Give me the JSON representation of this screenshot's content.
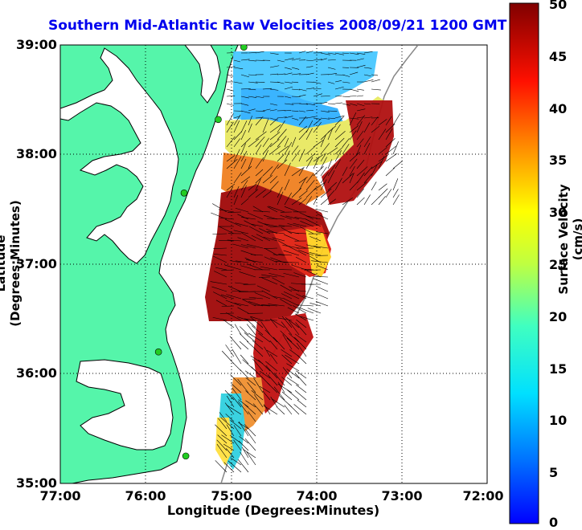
{
  "title": "Southern Mid-Atlantic Raw Velocities 2008/09/21 1200 GMT",
  "x_axis": {
    "label": "Longitude (Degrees:Minutes)",
    "ticks": [
      "77:00",
      "76:00",
      "75:00",
      "74:00",
      "73:00",
      "72:00"
    ]
  },
  "y_axis": {
    "label": "Latitude (Degrees:Minutes)",
    "ticks": [
      "39:00",
      "38:00",
      "37:00",
      "36:00",
      "35:00"
    ]
  },
  "colorbar": {
    "label": "Surface Velocity (cm/s)",
    "ticks": [
      "50",
      "45",
      "40",
      "35",
      "30",
      "25",
      "20",
      "15",
      "10",
      "5",
      "0"
    ],
    "min": 0,
    "max": 50,
    "colormap": "jet"
  },
  "colors": {
    "land": "#55f5aa",
    "title": "#0000ee",
    "grid": "#000000"
  },
  "map_extent": {
    "lon_min": -77,
    "lon_max": -72,
    "lat_min": 35,
    "lat_max": 39
  },
  "grid": "dotted",
  "stations": [
    {
      "lon": -74.85,
      "lat": 38.98
    },
    {
      "lon": -75.15,
      "lat": 38.32
    },
    {
      "lon": -75.55,
      "lat": 37.65
    },
    {
      "lon": -75.85,
      "lat": 36.2
    },
    {
      "lon": -75.53,
      "lat": 35.25
    }
  ]
}
